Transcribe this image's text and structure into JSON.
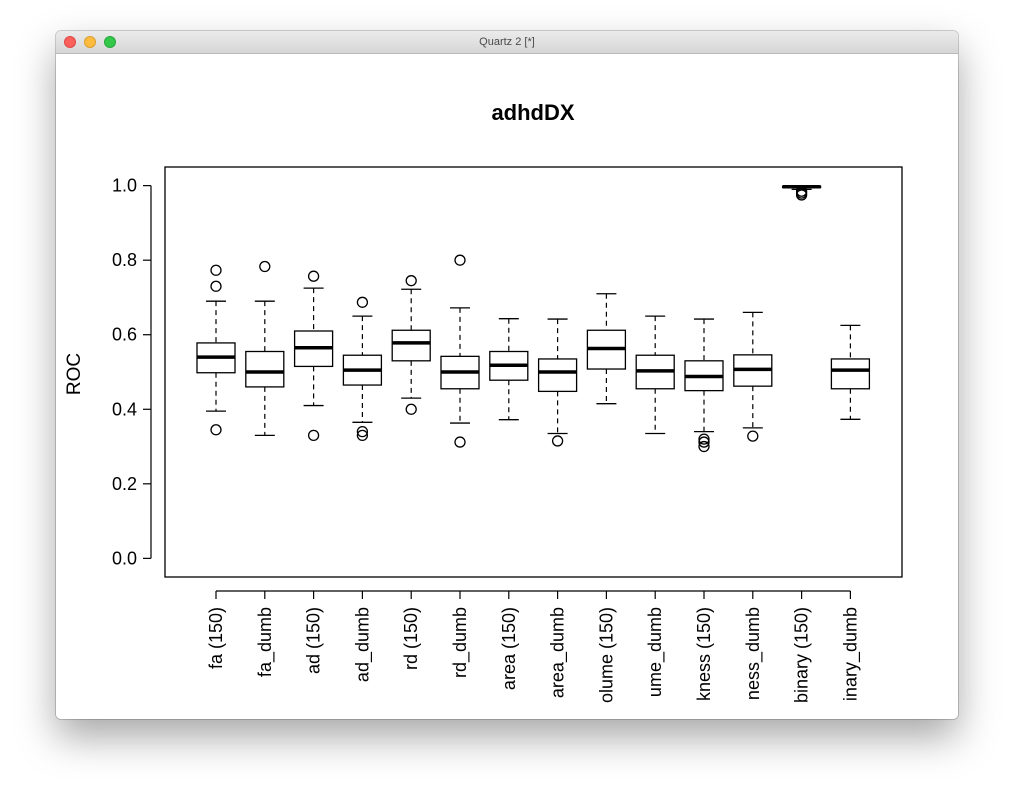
{
  "window": {
    "title": "Quartz 2 [*]"
  },
  "colors": {
    "close": "#fc605b",
    "minimize": "#fdbc40",
    "zoom": "#34c84a",
    "ink": "#000000"
  },
  "chart_data": {
    "type": "box",
    "title": "adhdDX",
    "ylabel": "ROC",
    "xlabel": "",
    "ylim": [
      -0.05,
      1.05
    ],
    "yticks": [
      "0.0",
      "0.2",
      "0.4",
      "0.6",
      "0.8",
      "1.0"
    ],
    "ytick_values": [
      0.0,
      0.2,
      0.4,
      0.6,
      0.8,
      1.0
    ],
    "grid": false,
    "categories": [
      "fa (150)",
      "fa_dumb",
      "ad (150)",
      "ad_dumb",
      "rd (150)",
      "rd_dumb",
      "area (150)",
      "area_dumb",
      "olume (150)",
      "ume_dumb",
      "kness (150)",
      "ness_dumb",
      "binary (150)",
      "inary_dumb"
    ],
    "boxes": [
      {
        "whisker_low": 0.395,
        "q1": 0.498,
        "median": 0.54,
        "q3": 0.578,
        "whisker_high": 0.69,
        "outliers": [
          0.345,
          0.73,
          0.773
        ]
      },
      {
        "whisker_low": 0.33,
        "q1": 0.46,
        "median": 0.5,
        "q3": 0.555,
        "whisker_high": 0.69,
        "outliers": [
          0.783
        ]
      },
      {
        "whisker_low": 0.41,
        "q1": 0.515,
        "median": 0.565,
        "q3": 0.61,
        "whisker_high": 0.725,
        "outliers": [
          0.33,
          0.757
        ]
      },
      {
        "whisker_low": 0.365,
        "q1": 0.465,
        "median": 0.505,
        "q3": 0.545,
        "whisker_high": 0.65,
        "outliers": [
          0.33,
          0.34,
          0.687
        ]
      },
      {
        "whisker_low": 0.43,
        "q1": 0.53,
        "median": 0.578,
        "q3": 0.612,
        "whisker_high": 0.722,
        "outliers": [
          0.4,
          0.745
        ]
      },
      {
        "whisker_low": 0.363,
        "q1": 0.455,
        "median": 0.5,
        "q3": 0.542,
        "whisker_high": 0.672,
        "outliers": [
          0.312,
          0.8
        ]
      },
      {
        "whisker_low": 0.372,
        "q1": 0.478,
        "median": 0.518,
        "q3": 0.555,
        "whisker_high": 0.643,
        "outliers": []
      },
      {
        "whisker_low": 0.335,
        "q1": 0.448,
        "median": 0.5,
        "q3": 0.535,
        "whisker_high": 0.642,
        "outliers": [
          0.315
        ]
      },
      {
        "whisker_low": 0.415,
        "q1": 0.508,
        "median": 0.563,
        "q3": 0.612,
        "whisker_high": 0.71,
        "outliers": []
      },
      {
        "whisker_low": 0.335,
        "q1": 0.455,
        "median": 0.503,
        "q3": 0.545,
        "whisker_high": 0.65,
        "outliers": []
      },
      {
        "whisker_low": 0.34,
        "q1": 0.45,
        "median": 0.488,
        "q3": 0.53,
        "whisker_high": 0.642,
        "outliers": [
          0.3,
          0.312,
          0.32
        ]
      },
      {
        "whisker_low": 0.35,
        "q1": 0.462,
        "median": 0.507,
        "q3": 0.546,
        "whisker_high": 0.66,
        "outliers": [
          0.328
        ]
      },
      {
        "whisker_low": 0.99,
        "q1": 0.995,
        "median": 0.997,
        "q3": 0.998,
        "whisker_high": 0.998,
        "outliers": [
          0.975,
          0.98,
          0.985
        ]
      },
      {
        "whisker_low": 0.373,
        "q1": 0.455,
        "median": 0.505,
        "q3": 0.535,
        "whisker_high": 0.625,
        "outliers": []
      }
    ]
  }
}
